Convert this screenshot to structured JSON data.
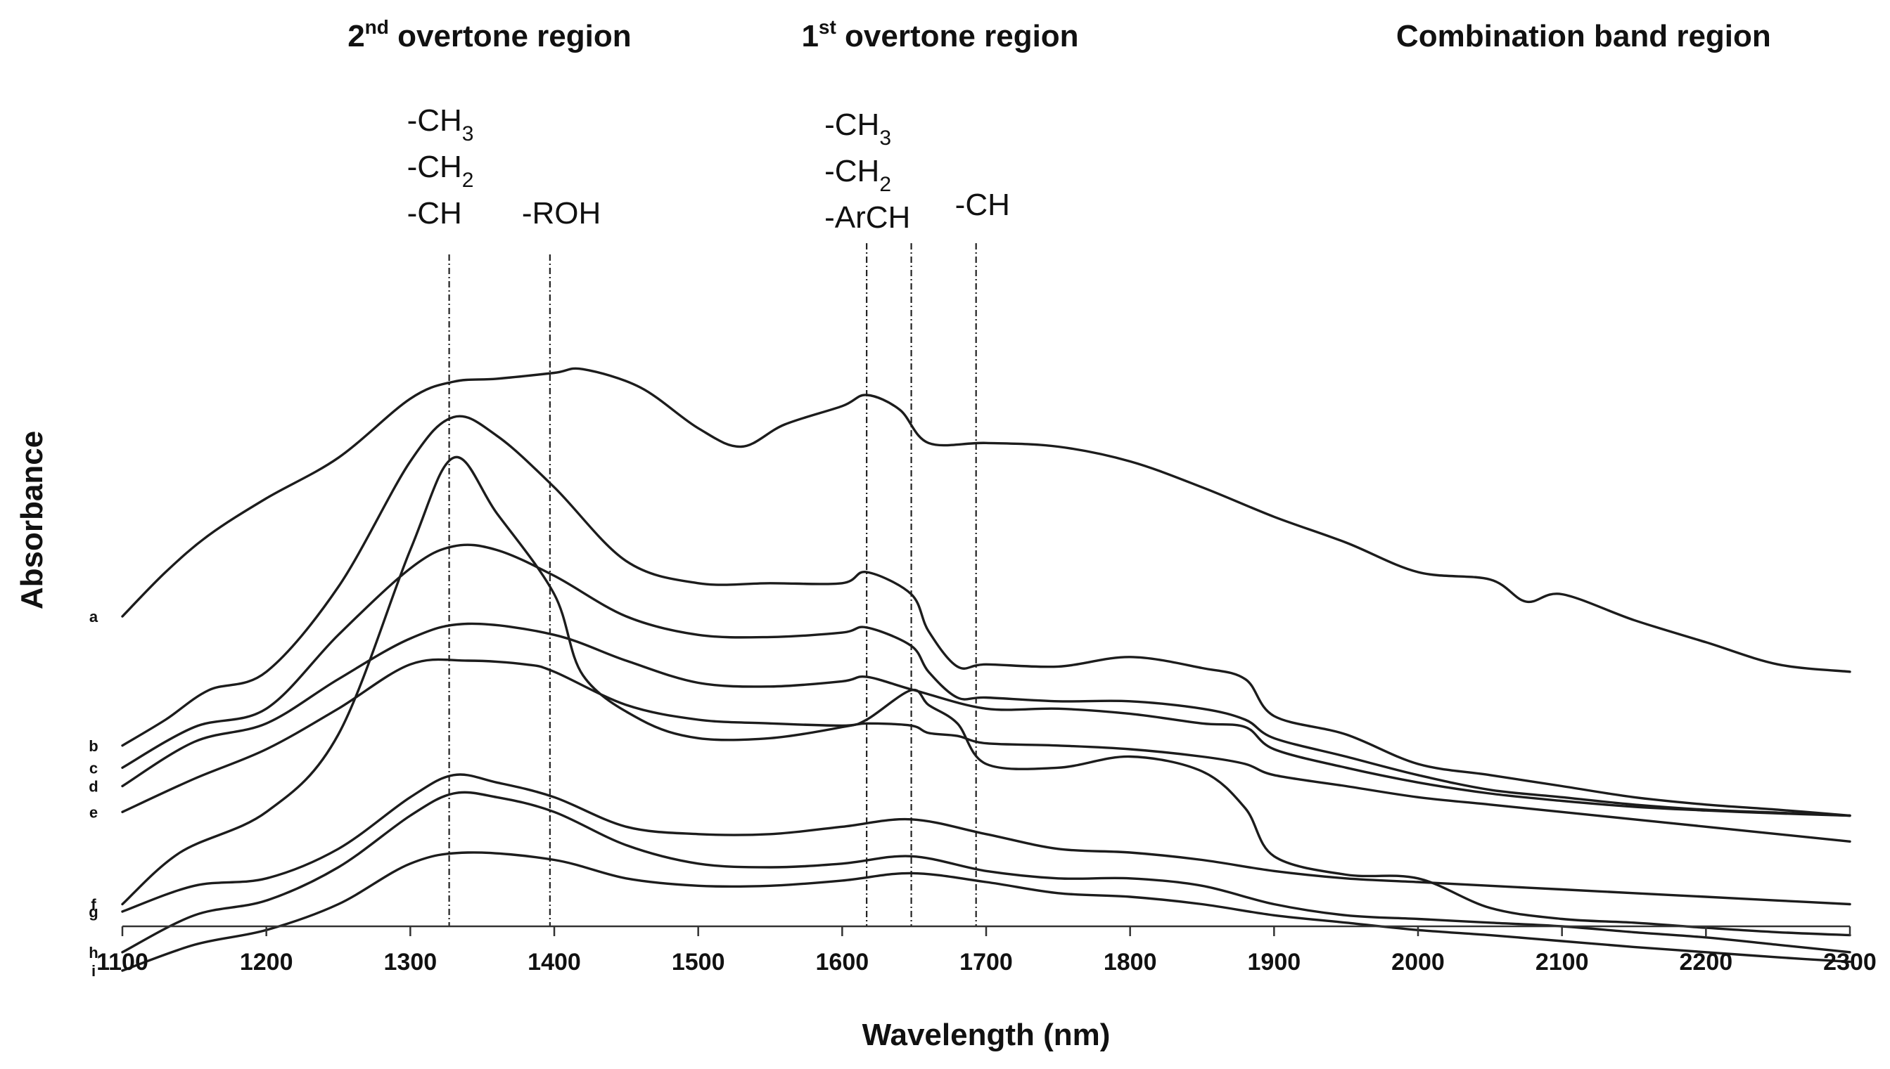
{
  "chart_data": {
    "type": "line",
    "xlabel": "Wavelength (nm)",
    "ylabel": "Absorbance",
    "xlim": [
      1100,
      2300
    ],
    "xticks": [
      1100,
      1200,
      1300,
      1400,
      1500,
      1600,
      1700,
      1800,
      1900,
      2000,
      2100,
      2200,
      2300
    ],
    "yticks": "none",
    "grid": false,
    "legend": "none",
    "region_labels": [
      {
        "base": "2",
        "sup": "nd",
        "rest": " overtone region",
        "center_x": 1355
      },
      {
        "base": "1",
        "sup": "st",
        "rest": " overtone region",
        "center_x": 1668
      },
      {
        "base": "Combination band region",
        "sup": "",
        "rest": "",
        "center_x": 2115
      }
    ],
    "markers": [
      {
        "x": 1327,
        "labels": [
          {
            "base": "-CH",
            "sub": "3"
          },
          {
            "base": "-CH",
            "sub": "2"
          },
          {
            "base": "-CH",
            "sub": ""
          }
        ]
      },
      {
        "x": 1397,
        "labels": [
          {
            "base": "-ROH",
            "sub": ""
          }
        ]
      },
      {
        "x": 1617,
        "labels": [
          {
            "base": "-CH",
            "sub": "3"
          },
          {
            "base": "-CH",
            "sub": "2"
          },
          {
            "base": "-ArCH",
            "sub": ""
          }
        ]
      },
      {
        "x": 1648,
        "labels": []
      },
      {
        "x": 1693,
        "labels": [
          {
            "base": "-CH",
            "sub": ""
          }
        ]
      }
    ],
    "series": [
      {
        "name": "a",
        "x": [
          1100,
          1130,
          1160,
          1200,
          1250,
          1300,
          1330,
          1360,
          1400,
          1420,
          1460,
          1500,
          1530,
          1560,
          1600,
          1617,
          1640,
          1660,
          1700,
          1750,
          1800,
          1850,
          1900,
          1950,
          2000,
          2050,
          2075,
          2100,
          2150,
          2200,
          2250,
          2300
        ],
        "y": [
          1.6,
          2.2,
          2.7,
          3.2,
          3.75,
          4.55,
          4.78,
          4.82,
          4.9,
          4.95,
          4.7,
          4.15,
          3.9,
          4.2,
          4.45,
          4.6,
          4.4,
          3.95,
          3.95,
          3.9,
          3.7,
          3.35,
          2.95,
          2.6,
          2.2,
          2.1,
          1.8,
          1.9,
          1.55,
          1.25,
          0.95,
          0.85
        ]
      },
      {
        "name": "b",
        "x": [
          1100,
          1130,
          1160,
          1200,
          1250,
          1300,
          1330,
          1360,
          1400,
          1450,
          1500,
          1550,
          1600,
          1617,
          1648,
          1660,
          1680,
          1700,
          1750,
          1800,
          1850,
          1880,
          1900,
          1950,
          2000,
          2050,
          2100,
          2150,
          2200,
          2250,
          2300
        ],
        "y": [
          -0.15,
          0.2,
          0.6,
          0.85,
          2.0,
          3.7,
          4.3,
          4.05,
          3.35,
          2.35,
          2.05,
          2.05,
          2.05,
          2.2,
          1.9,
          1.4,
          0.92,
          0.95,
          0.92,
          1.05,
          0.9,
          0.75,
          0.25,
          0.0,
          -0.4,
          -0.55,
          -0.7,
          -0.85,
          -0.95,
          -1.02,
          -1.1
        ]
      },
      {
        "name": "c",
        "x": [
          1100,
          1150,
          1200,
          1250,
          1300,
          1330,
          1360,
          1400,
          1450,
          1500,
          1550,
          1600,
          1617,
          1648,
          1660,
          1680,
          1700,
          1750,
          1800,
          1850,
          1880,
          1900,
          1950,
          2000,
          2050,
          2100,
          2150,
          2200,
          2250,
          2300
        ],
        "y": [
          -0.45,
          0.1,
          0.35,
          1.35,
          2.25,
          2.55,
          2.5,
          2.15,
          1.6,
          1.35,
          1.32,
          1.38,
          1.45,
          1.2,
          0.85,
          0.5,
          0.5,
          0.45,
          0.45,
          0.35,
          0.2,
          -0.05,
          -0.3,
          -0.55,
          -0.75,
          -0.85,
          -0.95,
          -1.02,
          -1.06,
          -1.1
        ]
      },
      {
        "name": "d",
        "x": [
          1100,
          1150,
          1200,
          1250,
          1300,
          1340,
          1400,
          1450,
          1500,
          1550,
          1600,
          1617,
          1650,
          1700,
          1750,
          1800,
          1850,
          1880,
          1900,
          1950,
          2000,
          2050,
          2100,
          2150,
          2200,
          2250,
          2300
        ],
        "y": [
          -0.7,
          -0.1,
          0.15,
          0.75,
          1.3,
          1.5,
          1.35,
          1.0,
          0.7,
          0.65,
          0.72,
          0.78,
          0.6,
          0.35,
          0.35,
          0.28,
          0.15,
          0.1,
          -0.2,
          -0.45,
          -0.65,
          -0.8,
          -0.9,
          -0.98,
          -1.03,
          -1.07,
          -1.1
        ]
      },
      {
        "name": "e",
        "x": [
          1100,
          1150,
          1200,
          1250,
          1300,
          1340,
          1380,
          1400,
          1450,
          1500,
          1550,
          1600,
          1617,
          1648,
          1660,
          1680,
          1700,
          1750,
          1800,
          1850,
          1880,
          1900,
          1950,
          2000,
          2050,
          2100,
          2150,
          2200,
          2250,
          2300
        ],
        "y": [
          -1.05,
          -0.6,
          -0.2,
          0.35,
          0.95,
          1.0,
          0.95,
          0.85,
          0.4,
          0.2,
          0.15,
          0.12,
          0.15,
          0.12,
          0.02,
          -0.02,
          -0.12,
          -0.15,
          -0.2,
          -0.3,
          -0.4,
          -0.55,
          -0.7,
          -0.85,
          -0.95,
          -1.05,
          -1.15,
          -1.25,
          -1.35,
          -1.45
        ]
      },
      {
        "name": "f",
        "x": [
          1100,
          1140,
          1200,
          1250,
          1300,
          1330,
          1360,
          1400,
          1420,
          1460,
          1500,
          1550,
          1600,
          1617,
          1648,
          1660,
          1680,
          1700,
          1750,
          1800,
          1850,
          1880,
          1900,
          1950,
          2000,
          2050,
          2100,
          2150,
          2200,
          2250,
          2300
        ],
        "y": [
          -2.3,
          -1.6,
          -1.05,
          0.0,
          2.5,
          3.75,
          3.0,
          1.9,
          0.8,
          0.2,
          -0.05,
          -0.05,
          0.1,
          0.2,
          0.6,
          0.4,
          0.15,
          -0.4,
          -0.45,
          -0.3,
          -0.5,
          -1.0,
          -1.65,
          -1.9,
          -1.95,
          -2.35,
          -2.5,
          -2.55,
          -2.62,
          -2.68,
          -2.72
        ]
      },
      {
        "name": "g",
        "x": [
          1100,
          1150,
          1200,
          1250,
          1300,
          1330,
          1360,
          1400,
          1450,
          1500,
          1550,
          1600,
          1648,
          1700,
          1750,
          1800,
          1850,
          1900,
          1950,
          2000,
          2050,
          2100,
          2150,
          2200,
          2250,
          2300
        ],
        "y": [
          -2.4,
          -2.05,
          -1.95,
          -1.55,
          -0.85,
          -0.55,
          -0.65,
          -0.85,
          -1.25,
          -1.35,
          -1.35,
          -1.25,
          -1.15,
          -1.35,
          -1.55,
          -1.6,
          -1.7,
          -1.85,
          -1.95,
          -2.0,
          -2.05,
          -2.1,
          -2.15,
          -2.2,
          -2.25,
          -2.3
        ]
      },
      {
        "name": "h",
        "x": [
          1100,
          1150,
          1200,
          1250,
          1300,
          1330,
          1360,
          1400,
          1450,
          1500,
          1550,
          1600,
          1648,
          1700,
          1750,
          1800,
          1850,
          1900,
          1950,
          2000,
          2050,
          2100,
          2150,
          2200,
          2250,
          2300
        ],
        "y": [
          -2.95,
          -2.45,
          -2.25,
          -1.8,
          -1.1,
          -0.8,
          -0.85,
          -1.05,
          -1.5,
          -1.75,
          -1.8,
          -1.75,
          -1.65,
          -1.85,
          -1.95,
          -1.95,
          -2.05,
          -2.3,
          -2.45,
          -2.5,
          -2.55,
          -2.6,
          -2.68,
          -2.75,
          -2.85,
          -2.95
        ]
      },
      {
        "name": "i",
        "x": [
          1100,
          1150,
          1200,
          1250,
          1300,
          1340,
          1400,
          1450,
          1500,
          1550,
          1600,
          1648,
          1700,
          1750,
          1800,
          1850,
          1900,
          1950,
          2000,
          2050,
          2100,
          2150,
          2200,
          2250,
          2300
        ],
        "y": [
          -3.2,
          -2.85,
          -2.65,
          -2.3,
          -1.75,
          -1.6,
          -1.7,
          -1.95,
          -2.05,
          -2.05,
          -1.98,
          -1.88,
          -2.0,
          -2.15,
          -2.2,
          -2.3,
          -2.45,
          -2.55,
          -2.65,
          -2.72,
          -2.8,
          -2.88,
          -2.95,
          -3.02,
          -3.08
        ]
      }
    ]
  }
}
